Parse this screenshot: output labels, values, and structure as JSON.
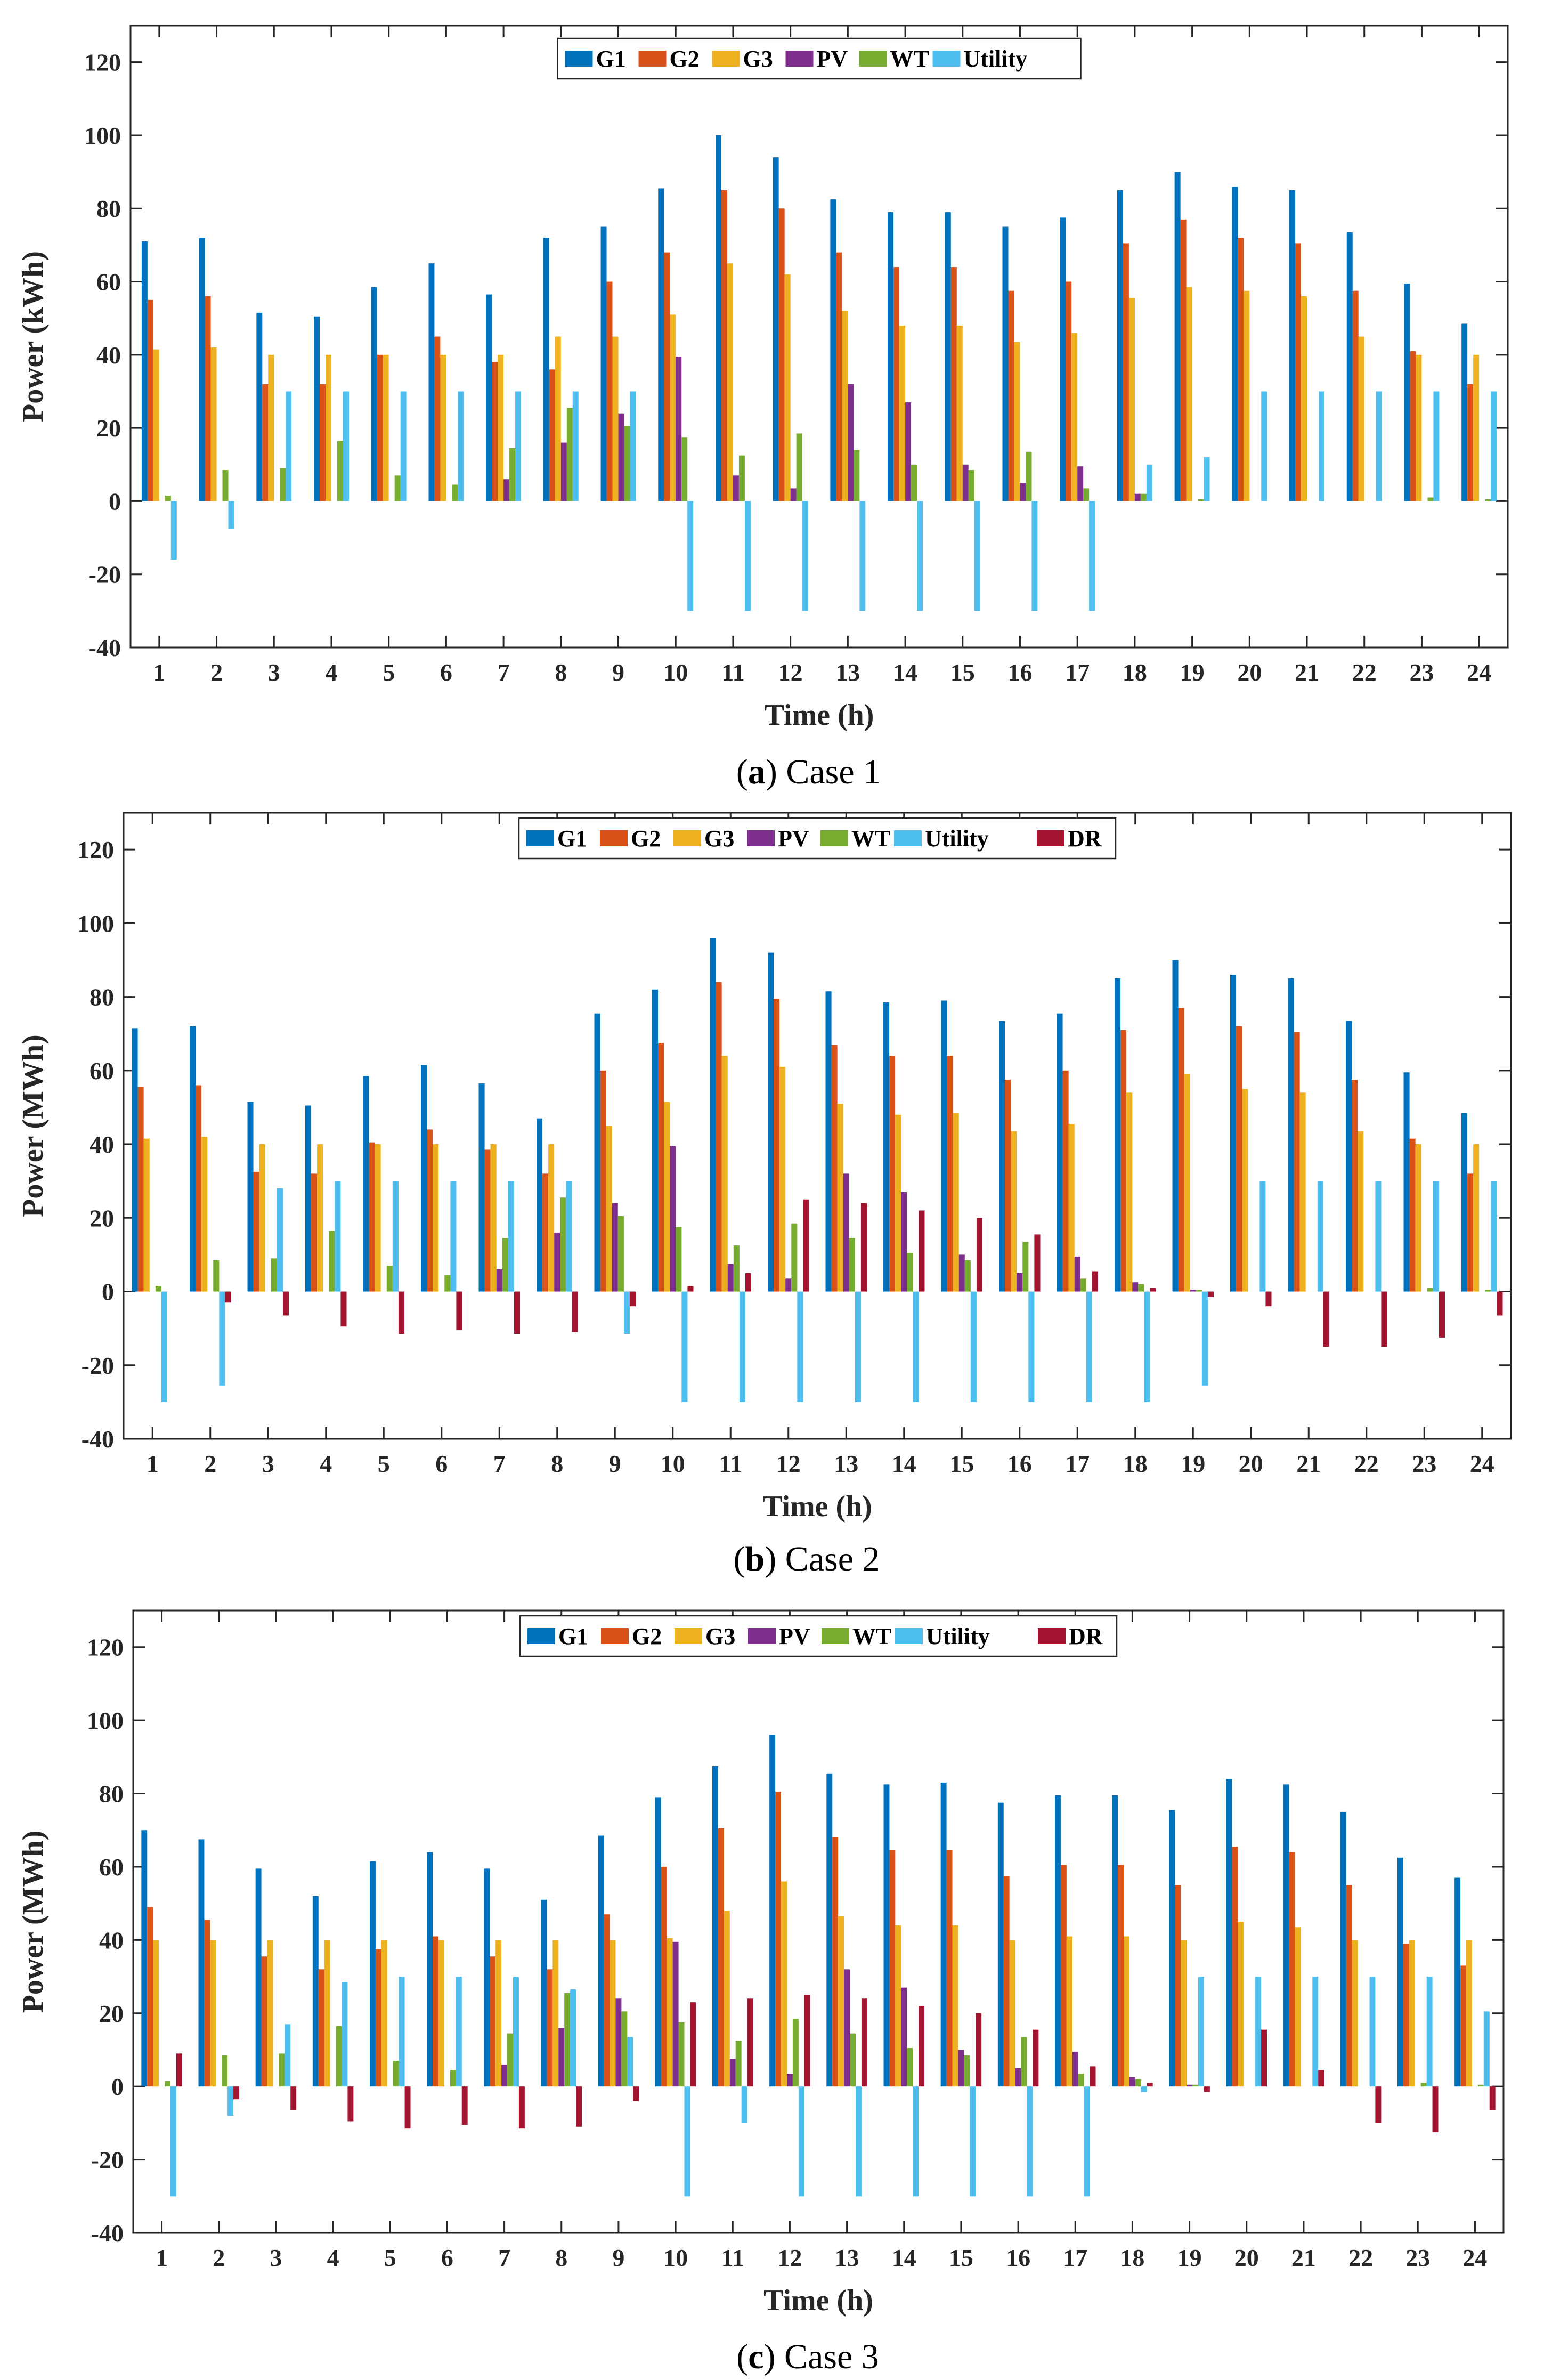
{
  "colors": {
    "G1": "#0072BD",
    "G2": "#D95319",
    "G3": "#EDB120",
    "PV": "#7E2F8E",
    "WT": "#77AC30",
    "Utility": "#4DBEEE",
    "DR": "#A2142F"
  },
  "chart_data": [
    {
      "type": "bar",
      "caption": {
        "letter": "a",
        "text": " Case 1"
      },
      "xlabel": "Time (h)",
      "ylabel": "Power (kWh)",
      "ylim": [
        -40,
        130
      ],
      "yticks": [
        -40,
        -20,
        0,
        20,
        40,
        60,
        80,
        100,
        120
      ],
      "legend_position": "top",
      "categories": [
        "1",
        "2",
        "3",
        "4",
        "5",
        "6",
        "7",
        "8",
        "9",
        "10",
        "11",
        "12",
        "13",
        "14",
        "15",
        "16",
        "17",
        "18",
        "19",
        "20",
        "21",
        "22",
        "23",
        "24"
      ],
      "series": [
        {
          "name": "G1",
          "values": [
            71,
            72,
            51.5,
            50.5,
            58.5,
            65,
            56.5,
            72,
            75,
            85.5,
            100,
            94,
            82.5,
            79,
            79,
            75,
            77.5,
            85,
            90,
            86,
            85,
            73.5,
            59.5,
            48.5
          ]
        },
        {
          "name": "G2",
          "values": [
            55,
            56,
            32,
            32,
            40,
            45,
            38,
            36,
            60,
            68,
            85,
            80,
            68,
            64,
            64,
            57.5,
            60,
            70.5,
            77,
            72,
            70.5,
            57.5,
            41,
            32
          ]
        },
        {
          "name": "G3",
          "values": [
            41.5,
            42,
            40,
            40,
            40,
            40,
            40,
            45,
            45,
            51,
            65,
            62,
            52,
            48,
            48,
            43.5,
            46,
            55.5,
            58.5,
            57.5,
            56,
            45,
            40,
            40
          ]
        },
        {
          "name": "PV",
          "values": [
            0,
            0,
            0,
            0,
            0,
            0,
            6,
            16,
            24,
            39.5,
            7,
            3.5,
            32,
            27,
            10,
            5,
            9.5,
            2,
            0,
            0,
            0,
            0,
            0,
            0
          ]
        },
        {
          "name": "WT",
          "values": [
            1.5,
            8.5,
            9,
            16.5,
            7,
            4.5,
            14.5,
            25.5,
            20.5,
            17.5,
            12.5,
            18.5,
            14,
            10,
            8.5,
            13.5,
            3.5,
            2,
            0.5,
            0,
            0,
            0,
            1,
            0.5
          ]
        },
        {
          "name": "Utility",
          "values": [
            -16,
            -7.5,
            30,
            30,
            30,
            30,
            30,
            30,
            30,
            -30,
            -30,
            -30,
            -30,
            -30,
            -30,
            -30,
            -30,
            10,
            12,
            30,
            30,
            30,
            30,
            30
          ]
        }
      ]
    },
    {
      "type": "bar",
      "caption": {
        "letter": "b",
        "text": " Case 2"
      },
      "xlabel": "Time (h)",
      "ylabel": "Power (MWh)",
      "ylim": [
        -40,
        130
      ],
      "yticks": [
        -40,
        -20,
        0,
        20,
        40,
        60,
        80,
        100,
        120
      ],
      "legend_position": "top",
      "categories": [
        "1",
        "2",
        "3",
        "4",
        "5",
        "6",
        "7",
        "8",
        "9",
        "10",
        "11",
        "12",
        "13",
        "14",
        "15",
        "16",
        "17",
        "18",
        "19",
        "20",
        "21",
        "22",
        "23",
        "24"
      ],
      "series": [
        {
          "name": "G1",
          "values": [
            71.5,
            72,
            51.5,
            50.5,
            58.5,
            61.5,
            56.5,
            47,
            75.5,
            82,
            96,
            92,
            81.5,
            78.5,
            79,
            73.5,
            75.5,
            85,
            90,
            86,
            85,
            73.5,
            59.5,
            48.5
          ]
        },
        {
          "name": "G2",
          "values": [
            55.5,
            56,
            32.5,
            32,
            40.5,
            44,
            38.5,
            32,
            60,
            67.5,
            84,
            79.5,
            67,
            64,
            64,
            57.5,
            60,
            71,
            77,
            72,
            70.5,
            57.5,
            41.5,
            32
          ]
        },
        {
          "name": "G3",
          "values": [
            41.5,
            42,
            40,
            40,
            40,
            40,
            40,
            40,
            45,
            51.5,
            64,
            61,
            51,
            48,
            48.5,
            43.5,
            45.5,
            54,
            59,
            55,
            54,
            43.5,
            40,
            40
          ]
        },
        {
          "name": "PV",
          "values": [
            0,
            0,
            0,
            0,
            0,
            0,
            6,
            16,
            24,
            39.5,
            7.5,
            3.5,
            32,
            27,
            10,
            5,
            9.5,
            2.5,
            0.5,
            0,
            0,
            0,
            0,
            0
          ]
        },
        {
          "name": "WT",
          "values": [
            1.5,
            8.5,
            9,
            16.5,
            7,
            4.5,
            14.5,
            25.5,
            20.5,
            17.5,
            12.5,
            18.5,
            14.5,
            10.5,
            8.5,
            13.5,
            3.5,
            2,
            0.5,
            0,
            0,
            0,
            1,
            0.5
          ]
        },
        {
          "name": "Utility",
          "values": [
            -30,
            -25.5,
            28,
            30,
            30,
            30,
            30,
            30,
            -11.5,
            -30,
            -30,
            -30,
            -30,
            -30,
            -30,
            -30,
            -30,
            -30,
            -25.5,
            30,
            30,
            30,
            30,
            30
          ]
        },
        {
          "name": "DR",
          "values": [
            0,
            -3,
            -6.5,
            -9.5,
            -11.5,
            -10.5,
            -11.5,
            -11,
            -4,
            1.5,
            5,
            25,
            24,
            22,
            20,
            15.5,
            5.5,
            1,
            -1.5,
            -4,
            -15,
            -15,
            -12.5,
            -6.5
          ]
        }
      ]
    },
    {
      "type": "bar",
      "caption": {
        "letter": "c",
        "text": " Case 3"
      },
      "xlabel": "Time (h)",
      "ylabel": "Power (MWh)",
      "ylim": [
        -40,
        130
      ],
      "yticks": [
        -40,
        -20,
        0,
        20,
        40,
        60,
        80,
        100,
        120
      ],
      "legend_position": "top",
      "categories": [
        "1",
        "2",
        "3",
        "4",
        "5",
        "6",
        "7",
        "8",
        "9",
        "10",
        "11",
        "12",
        "13",
        "14",
        "15",
        "16",
        "17",
        "18",
        "19",
        "20",
        "21",
        "22",
        "23",
        "24"
      ],
      "series": [
        {
          "name": "G1",
          "values": [
            70,
            67.5,
            59.5,
            52,
            61.5,
            64,
            59.5,
            51,
            68.5,
            79,
            87.5,
            96,
            85.5,
            82.5,
            83,
            77.5,
            79.5,
            79.5,
            75.5,
            84,
            82.5,
            75,
            62.5,
            57
          ]
        },
        {
          "name": "G2",
          "values": [
            49,
            45.5,
            35.5,
            32,
            37.5,
            41,
            35.5,
            32,
            47,
            60,
            70.5,
            80.5,
            68,
            64.5,
            64.5,
            57.5,
            60.5,
            60.5,
            55,
            65.5,
            64,
            55,
            39,
            33
          ]
        },
        {
          "name": "G3",
          "values": [
            40,
            40,
            40,
            40,
            40,
            40,
            40,
            40,
            40,
            40.5,
            48,
            56,
            46.5,
            44,
            44,
            40,
            41,
            41,
            40,
            45,
            43.5,
            40,
            40,
            40
          ]
        },
        {
          "name": "PV",
          "values": [
            0,
            0,
            0,
            0,
            0,
            0,
            6,
            16,
            24,
            39.5,
            7.5,
            3.5,
            32,
            27,
            10,
            5,
            9.5,
            2.5,
            0.5,
            0,
            0,
            0,
            0,
            0
          ]
        },
        {
          "name": "WT",
          "values": [
            1.5,
            8.5,
            9,
            16.5,
            7,
            4.5,
            14.5,
            25.5,
            20.5,
            17.5,
            12.5,
            18.5,
            14.5,
            10.5,
            8.5,
            13.5,
            3.5,
            2,
            0.5,
            0,
            0,
            0,
            1,
            0.5
          ]
        },
        {
          "name": "Utility",
          "values": [
            -30,
            -8,
            17,
            28.5,
            30,
            30,
            30,
            26.5,
            13.5,
            -30,
            -10,
            -30,
            -30,
            -30,
            -30,
            -30,
            -30,
            -1.5,
            30,
            30,
            30,
            30,
            30,
            20.5
          ]
        },
        {
          "name": "DR",
          "values": [
            9,
            -3.5,
            -6.5,
            -9.5,
            -11.5,
            -10.5,
            -11.5,
            -11,
            -4,
            23,
            24,
            25,
            24,
            22,
            20,
            15.5,
            5.5,
            1,
            -1.5,
            15.5,
            4.5,
            -10,
            -12.5,
            -6.5
          ]
        }
      ]
    }
  ]
}
